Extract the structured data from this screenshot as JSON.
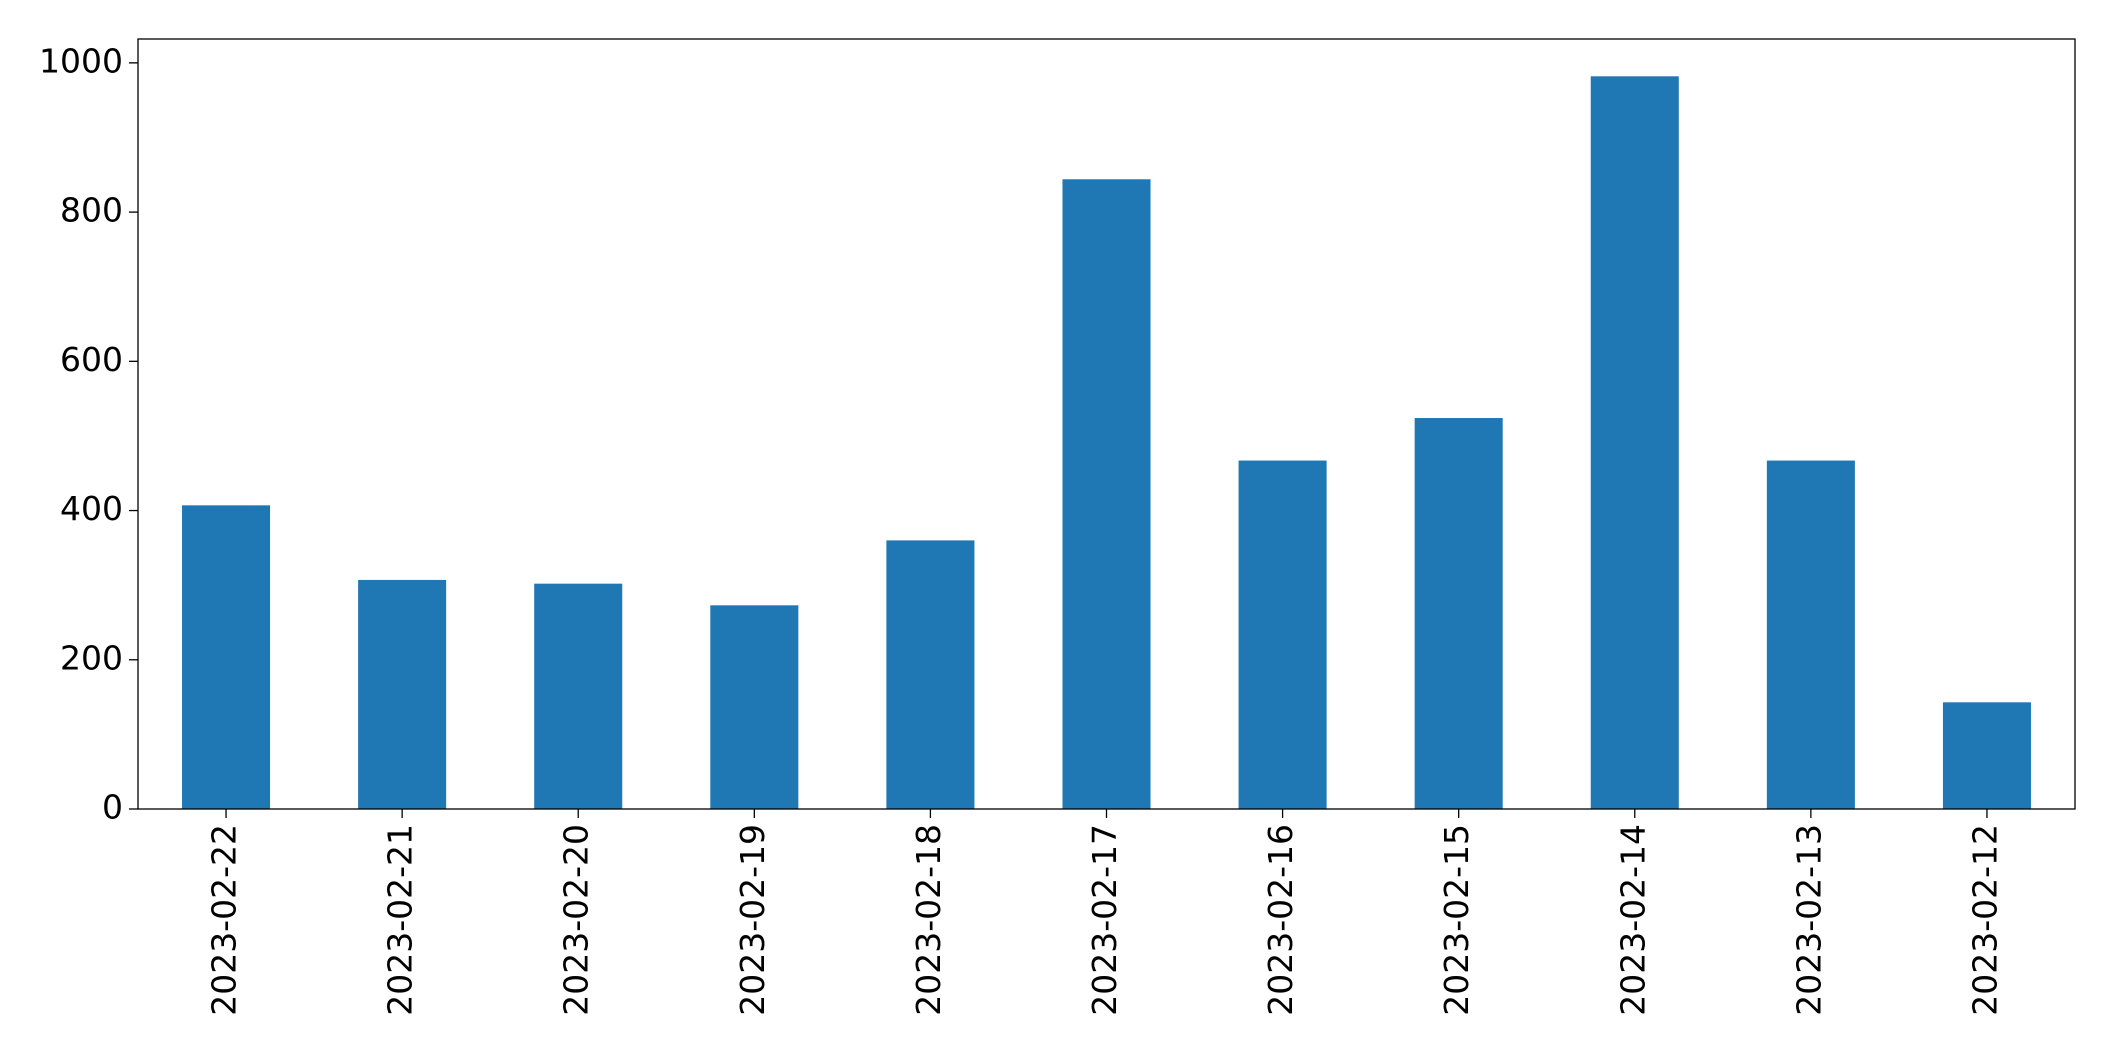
{
  "chart_data": {
    "type": "bar",
    "categories": [
      "2023-02-22",
      "2023-02-21",
      "2023-02-20",
      "2023-02-19",
      "2023-02-18",
      "2023-02-17",
      "2023-02-16",
      "2023-02-15",
      "2023-02-14",
      "2023-02-13",
      "2023-02-12"
    ],
    "values": [
      407,
      307,
      302,
      273,
      360,
      844,
      467,
      524,
      982,
      467,
      143
    ],
    "color": "#1f77b4",
    "ylim": [
      0,
      1032
    ],
    "yticks": [
      0,
      200,
      400,
      600,
      800,
      1000
    ],
    "grid": false
  }
}
